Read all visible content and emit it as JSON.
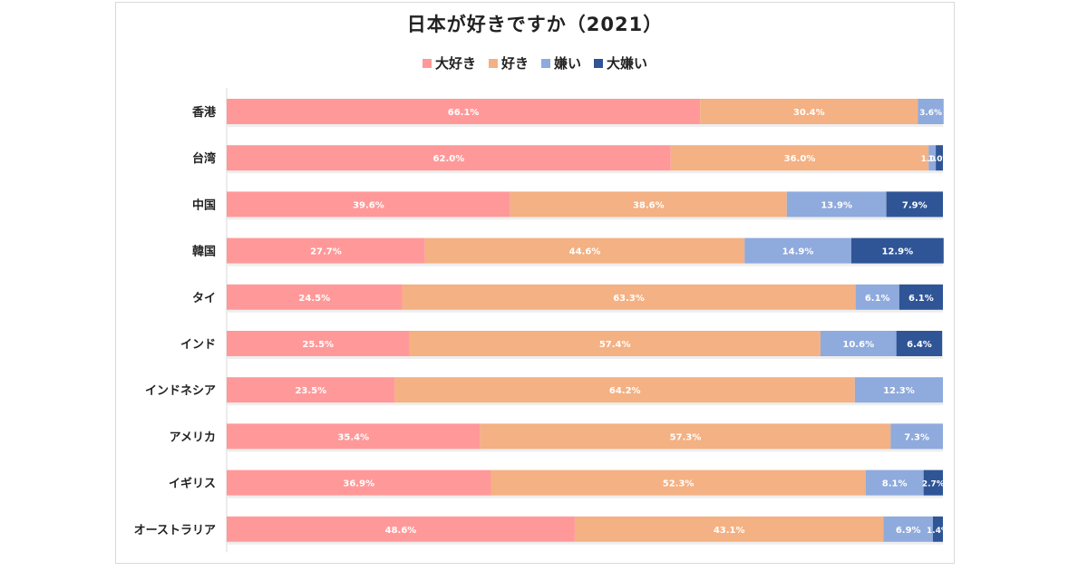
{
  "chart_data": {
    "type": "bar",
    "orientation": "horizontal",
    "stacked": true,
    "title": "日本が好きですか（2021）",
    "categories": [
      "香港",
      "台湾",
      "中国",
      "韓国",
      "タイ",
      "インド",
      "インドネシア",
      "アメリカ",
      "イギリス",
      "オーストラリア"
    ],
    "series": [
      {
        "name": "大好き",
        "color": "#ff9999",
        "values": [
          66.1,
          62.0,
          39.6,
          27.7,
          24.5,
          25.5,
          23.5,
          35.4,
          36.9,
          48.6
        ],
        "labels": [
          "66.1%",
          "62.0%",
          "39.6%",
          "27.7%",
          "24.5%",
          "25.5%",
          "23.5%",
          "35.4%",
          "36.9%",
          "48.6%"
        ]
      },
      {
        "name": "好き",
        "color": "#f4b183",
        "values": [
          30.4,
          36.0,
          38.6,
          44.6,
          63.3,
          57.4,
          64.2,
          57.3,
          52.3,
          43.1
        ],
        "labels": [
          "30.4%",
          "36.0%",
          "38.6%",
          "44.6%",
          "63.3%",
          "57.4%",
          "64.2%",
          "57.3%",
          "52.3%",
          "43.1%"
        ]
      },
      {
        "name": "嫌い",
        "color": "#8faadc",
        "values": [
          3.6,
          1.0,
          13.9,
          14.9,
          6.1,
          10.6,
          12.3,
          7.3,
          8.1,
          6.9
        ],
        "labels": [
          "3.6%",
          "1.0%",
          "13.9%",
          "14.9%",
          "6.1%",
          "10.6%",
          "12.3%",
          "7.3%",
          "8.1%",
          "6.9%"
        ]
      },
      {
        "name": "大嫌い",
        "color": "#2f5597",
        "values": [
          0,
          1.0,
          7.9,
          12.9,
          6.1,
          6.4,
          0,
          0,
          2.7,
          1.4
        ],
        "labels": [
          "",
          "1.0%",
          "7.9%",
          "12.9%",
          "6.1%",
          "6.4%",
          "",
          "",
          "2.7%",
          "1.4%"
        ]
      }
    ],
    "xlim": [
      0,
      100
    ],
    "legend_position": "top",
    "grid": false
  }
}
